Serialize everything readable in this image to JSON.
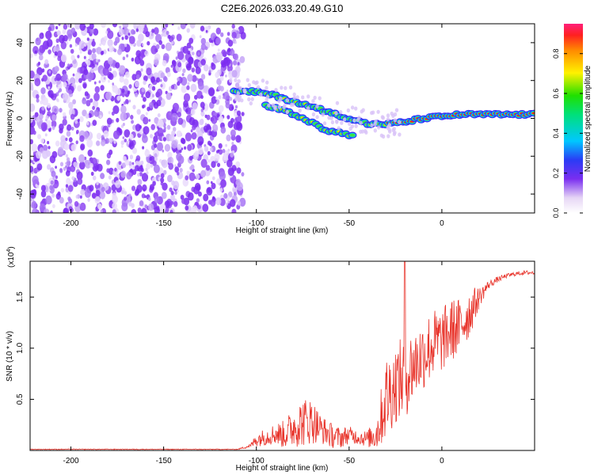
{
  "title": "C2E6.2026.033.20.49.G10",
  "chart_data": [
    {
      "type": "heatmap",
      "name": "spectrogram",
      "xlabel": "Height of straight line (km)",
      "ylabel": "Frequency (Hz)",
      "xlim": [
        -222,
        50
      ],
      "ylim": [
        -50,
        50
      ],
      "xticks": [
        -200,
        -150,
        -100,
        -50,
        0
      ],
      "yticks": [
        -40,
        -20,
        0,
        20,
        40
      ],
      "noise_region": {
        "x": [
          -222,
          -107
        ],
        "y": [
          -50,
          50
        ]
      },
      "ridge": {
        "x": [
          -112,
          -100,
          -90,
          -80,
          -70,
          -60,
          -50,
          -40,
          -30,
          -20,
          -10,
          0,
          10,
          20,
          30,
          50
        ],
        "y": [
          14,
          14,
          12,
          9,
          6,
          3,
          0,
          -3,
          -3,
          -2,
          0,
          1,
          2,
          2,
          2,
          2
        ]
      },
      "branch_lower": {
        "x": [
          -95,
          -85,
          -75,
          -65,
          -60,
          -52,
          -47
        ],
        "y": [
          7,
          4,
          0,
          -5,
          -7,
          -8,
          -10
        ]
      },
      "colorbar": {
        "label": "Normalized spectral amplitude",
        "range": [
          0,
          0.95
        ],
        "ticks": [
          "0.0",
          "0.2",
          "0.4",
          "0.6",
          "0.8"
        ]
      }
    },
    {
      "type": "line",
      "name": "snr",
      "xlabel": "Height of straight line (km)",
      "ylabel": "SNR (10 * v/v)",
      "multiplier": "(x10",
      "multiplier_exp": "4",
      "multiplier_close": ")",
      "xlim": [
        -222,
        50
      ],
      "ylim": [
        0,
        1.85
      ],
      "xticks": [
        -200,
        -150,
        -100,
        -50,
        0
      ],
      "yticks": [
        "0.5",
        "1.0",
        "1.5"
      ],
      "ytick_values": [
        0.5,
        1.0,
        1.5
      ],
      "color": "#e8332a",
      "envelope": {
        "x": [
          -222,
          -110,
          -103,
          -100,
          -95,
          -90,
          -85,
          -80,
          -75,
          -70,
          -65,
          -60,
          -55,
          -50,
          -45,
          -40,
          -35,
          -30,
          -25,
          -20,
          -15,
          -10,
          -5,
          0,
          5,
          10,
          15,
          20,
          25,
          30,
          35,
          40,
          45,
          50
        ],
        "base": [
          0.01,
          0.01,
          0.04,
          0.08,
          0.1,
          0.12,
          0.1,
          0.15,
          0.18,
          0.2,
          0.15,
          0.1,
          0.08,
          0.12,
          0.1,
          0.08,
          0.1,
          0.35,
          0.5,
          0.55,
          0.7,
          0.8,
          0.9,
          0.95,
          1.05,
          1.1,
          1.25,
          1.45,
          1.6,
          1.66,
          1.7,
          1.72,
          1.73,
          1.73
        ],
        "amp": [
          0.005,
          0.005,
          0.03,
          0.1,
          0.12,
          0.15,
          0.2,
          0.28,
          0.35,
          0.32,
          0.2,
          0.18,
          0.15,
          0.12,
          0.1,
          0.12,
          0.25,
          0.6,
          0.55,
          0.6,
          0.5,
          0.5,
          0.5,
          0.45,
          0.45,
          0.4,
          0.35,
          0.15,
          0.06,
          0.04,
          0.03,
          0.03,
          0.03,
          0.03
        ]
      },
      "spike": {
        "x": -20,
        "y": 1.85
      }
    }
  ]
}
